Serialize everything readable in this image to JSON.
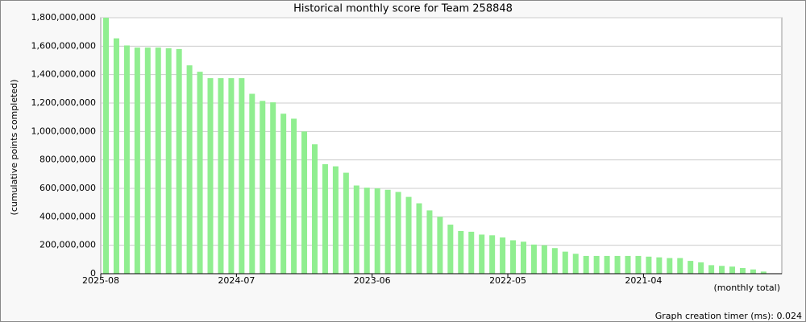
{
  "chart_data": {
    "type": "bar",
    "title": "Historical monthly score for Team 258848",
    "y_label": "(cumulative points completed)",
    "x_label": "(monthly total)",
    "footer": "Graph creation timer (ms): 0.024",
    "color": "#90ee90",
    "grid": true,
    "categories": [
      "2025-08",
      null,
      null,
      null,
      null,
      null,
      null,
      null,
      null,
      null,
      null,
      null,
      null,
      "2024-07",
      null,
      null,
      null,
      null,
      null,
      null,
      null,
      null,
      null,
      null,
      null,
      null,
      "2023-06",
      null,
      null,
      null,
      null,
      null,
      null,
      null,
      null,
      null,
      null,
      null,
      null,
      "2022-05",
      null,
      null,
      null,
      null,
      null,
      null,
      null,
      null,
      null,
      null,
      null,
      null,
      "2021-04",
      null,
      null,
      null,
      null,
      null,
      null,
      null,
      null,
      null,
      null,
      null
    ],
    "values": [
      1800000000,
      1655000000,
      1605000000,
      1590000000,
      1590000000,
      1590000000,
      1585000000,
      1580000000,
      1465000000,
      1420000000,
      1375000000,
      1375000000,
      1375000000,
      1375000000,
      1265000000,
      1215000000,
      1205000000,
      1125000000,
      1090000000,
      1000000000,
      910000000,
      770000000,
      755000000,
      710000000,
      620000000,
      605000000,
      600000000,
      590000000,
      575000000,
      540000000,
      495000000,
      445000000,
      400000000,
      345000000,
      300000000,
      295000000,
      275000000,
      270000000,
      255000000,
      235000000,
      225000000,
      205000000,
      200000000,
      180000000,
      155000000,
      140000000,
      125000000,
      125000000,
      125000000,
      125000000,
      125000000,
      125000000,
      120000000,
      115000000,
      110000000,
      110000000,
      90000000,
      80000000,
      60000000,
      55000000,
      50000000,
      40000000,
      30000000,
      15000000
    ],
    "ylim": [
      0,
      1800000000
    ],
    "yticks": [
      0,
      {
        "value": 200000000,
        "label": "200,000,000"
      },
      {
        "value": 400000000,
        "label": "400,000,000"
      },
      {
        "value": 600000000,
        "label": "600,000,000"
      },
      {
        "value": 800000000,
        "label": "800,000,000"
      },
      {
        "value": 1000000000,
        "label": "1,000,000,000"
      },
      {
        "value": 1200000000,
        "label": "1,200,000,000"
      },
      {
        "value": 1400000000,
        "label": "1,400,000,000"
      },
      {
        "value": 1600000000,
        "label": "1,600,000,000"
      },
      {
        "value": 1800000000,
        "label": "1,800,000,000"
      }
    ]
  }
}
